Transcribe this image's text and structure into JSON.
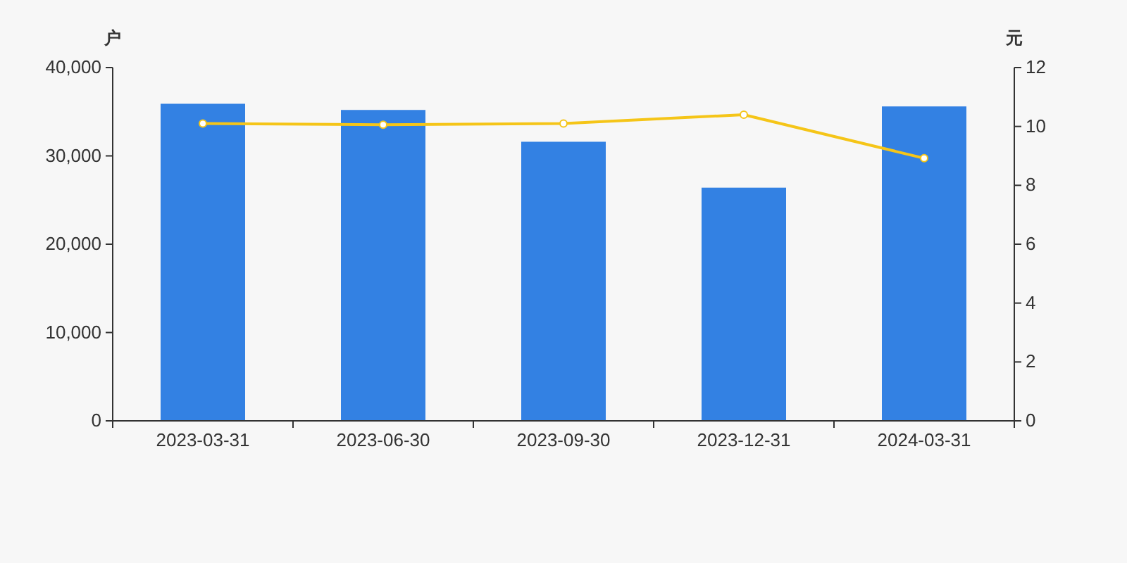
{
  "chart_data": {
    "type": "bar",
    "categories": [
      "2023-03-31",
      "2023-06-30",
      "2023-09-30",
      "2023-12-31",
      "2024-03-31"
    ],
    "ylabel": "户",
    "y2label": "元",
    "ylim": [
      0,
      40000
    ],
    "yticks": [
      {
        "value": 0,
        "label": "0"
      },
      {
        "value": 10000,
        "label": "10,000"
      },
      {
        "value": 20000,
        "label": "20,000"
      },
      {
        "value": 30000,
        "label": "30,000"
      },
      {
        "value": 40000,
        "label": "40,000"
      }
    ],
    "y2lim": [
      0,
      12
    ],
    "y2ticks": [
      0,
      2,
      4,
      6,
      8,
      10,
      12
    ],
    "grid": false,
    "series": [
      {
        "color": "#3381e3",
        "values": [
          35900,
          35200,
          31600,
          26400,
          35600
        ]
      },
      {
        "type": "line",
        "axis": "y2",
        "color": "#f5c518",
        "marker": "circle",
        "values": [
          10.1,
          10.06,
          10.1,
          10.4,
          8.92
        ]
      }
    ]
  }
}
